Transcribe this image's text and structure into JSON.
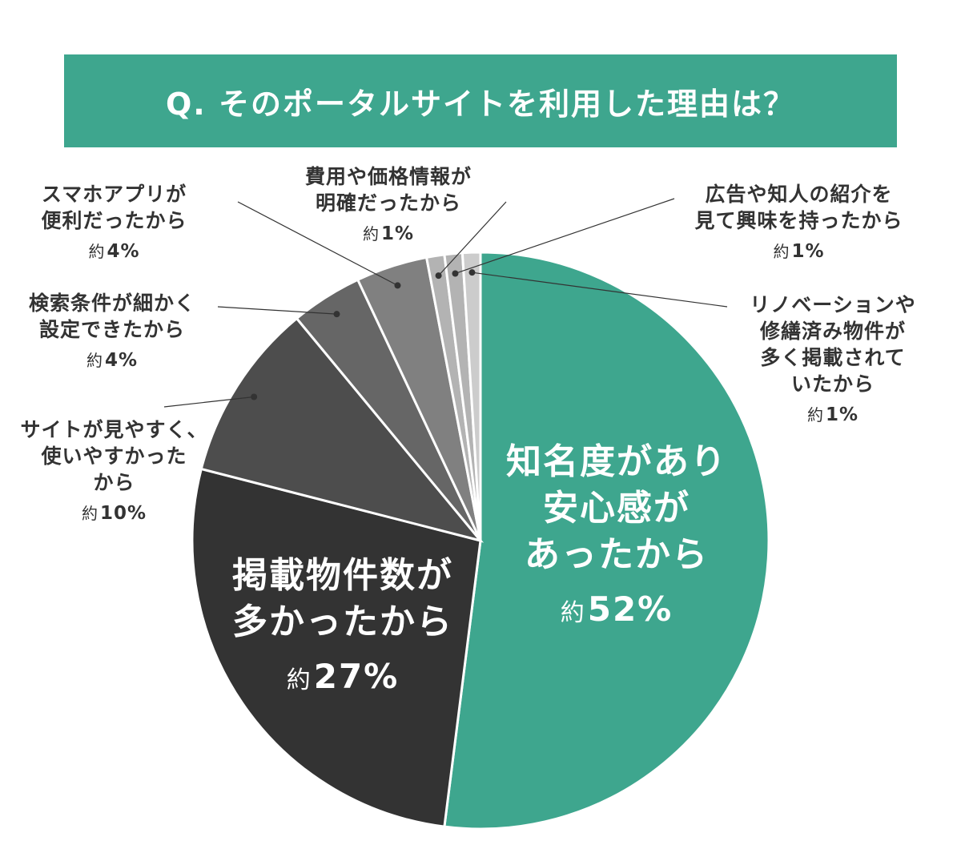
{
  "title": "Q. そのポータルサイトを利用した理由は？",
  "colors": {
    "accent": "#3ea68e",
    "slices": [
      "#3ea68e",
      "#333333",
      "#4d4d4d",
      "#666666",
      "#808080",
      "#b3b3b3",
      "#b3b3b3",
      "#cccccc"
    ]
  },
  "chart_data": {
    "type": "pie",
    "title": "Q. そのポータルサイトを利用した理由は？",
    "prefix": "約",
    "start": "12 o'clock, clockwise",
    "slices": [
      {
        "label_lines": [
          "知名度があり",
          "安心感が",
          "あったから"
        ],
        "value": 52,
        "display": "52%"
      },
      {
        "label_lines": [
          "掲載物件数が",
          "多かったから"
        ],
        "value": 27,
        "display": "27%"
      },
      {
        "label_lines": [
          "サイトが見やすく、",
          "使いやすかった",
          "から"
        ],
        "value": 10,
        "display": "10%"
      },
      {
        "label_lines": [
          "検索条件が細かく",
          "設定できたから"
        ],
        "value": 4,
        "display": "4%"
      },
      {
        "label_lines": [
          "スマホアプリが",
          "便利だったから"
        ],
        "value": 4,
        "display": "4%"
      },
      {
        "label_lines": [
          "費用や価格情報が",
          "明確だったから"
        ],
        "value": 1,
        "display": "1%"
      },
      {
        "label_lines": [
          "広告や知人の紹介を",
          "見て興味を持ったから"
        ],
        "value": 1,
        "display": "1%"
      },
      {
        "label_lines": [
          "リノベーションや",
          "修繕済み物件が",
          "多く掲載されて",
          "いたから"
        ],
        "value": 1,
        "display": "1%"
      }
    ]
  }
}
